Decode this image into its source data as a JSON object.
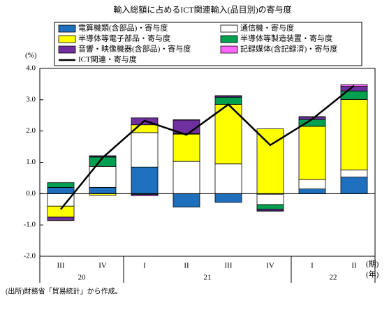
{
  "chart_data": {
    "type": "bar",
    "stacked": true,
    "title": "輸入総額に占めるICT関連輸入(品目別)の寄与度",
    "y_unit": "(%)",
    "x_unit_period": "(期)",
    "x_unit_year": "(年)",
    "source": "(出所)財務省「貿易統計」から作成。",
    "categories": [
      "III",
      "IV",
      "I",
      "II",
      "III",
      "IV",
      "I",
      "II"
    ],
    "x_groups": [
      {
        "label": "20",
        "span": [
          0,
          1
        ]
      },
      {
        "label": "21",
        "span": [
          2,
          5
        ]
      },
      {
        "label": "22",
        "span": [
          6,
          7
        ]
      }
    ],
    "ylim": [
      -2.0,
      4.0
    ],
    "yticks": [
      {
        "value": -2,
        "label": "-2.0"
      },
      {
        "value": -1,
        "label": "-1.0"
      },
      {
        "value": 0,
        "label": "0.0"
      },
      {
        "value": 1,
        "label": "1.0"
      },
      {
        "value": 2,
        "label": "2.0"
      },
      {
        "value": 3,
        "label": "3.0"
      },
      {
        "value": 4,
        "label": "4.0"
      }
    ],
    "series": [
      {
        "name": "電算機類(含部品)・寄与度",
        "type": "bar",
        "color": "#1f6fbf",
        "values": [
          0.2,
          0.2,
          0.85,
          -0.43,
          -0.28,
          -0.02,
          0.15,
          0.53
        ]
      },
      {
        "name": "通信機・寄与度",
        "type": "bar",
        "color": "#ffffff",
        "values": [
          -0.4,
          0.67,
          1.1,
          1.03,
          0.95,
          -0.33,
          0.3,
          0.23
        ]
      },
      {
        "name": "半導体等電子部品・寄与度",
        "type": "bar",
        "color": "#ffff00",
        "values": [
          -0.35,
          -0.05,
          0.25,
          0.87,
          1.9,
          2.07,
          1.7,
          2.25
        ]
      },
      {
        "name": "半導体等製造装置・寄与度",
        "type": "bar",
        "color": "#00a050",
        "values": [
          0.15,
          0.3,
          -0.03,
          0.02,
          0.23,
          -0.15,
          0.22,
          0.27
        ]
      },
      {
        "name": "音響・映像機器(含部品)・寄与度",
        "type": "bar",
        "color": "#7030a0",
        "values": [
          -0.1,
          0.03,
          0.22,
          0.43,
          0.04,
          -0.05,
          0.08,
          0.15
        ]
      },
      {
        "name": "記録媒体(含記録済)・寄与度",
        "type": "bar",
        "color": "#ff66ff",
        "values": [
          -0.01,
          0.01,
          -0.04,
          0.01,
          0.01,
          -0.01,
          0.01,
          0.05
        ]
      },
      {
        "name": "ICT関連・寄与度",
        "type": "line",
        "color": "#000000",
        "values": [
          -0.5,
          1.15,
          2.33,
          1.88,
          2.85,
          1.55,
          2.38,
          3.45
        ]
      }
    ]
  }
}
